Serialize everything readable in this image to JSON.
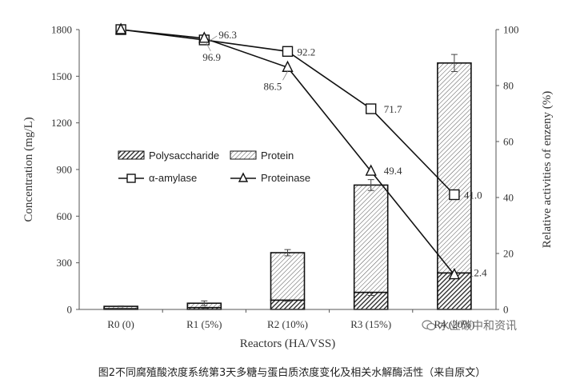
{
  "caption": "图2不同腐殖酸浓度系统第3天多糖与蛋白质浓度变化及相关水解酶活性（来自原文）",
  "watermark": "水业碳中和资讯",
  "watermark_icon": "wechat-icon",
  "chart_data": {
    "type": "bar",
    "stacked": true,
    "categories": [
      "R0 (0)",
      "R1 (5%)",
      "R2 (10%)",
      "R3 (15%)",
      "R4 (20%)"
    ],
    "xlabel": "Reactors (HA/VSS)",
    "ylabel": "Concentration (mg/L)",
    "ylim": [
      0,
      1800
    ],
    "yticks": [
      0,
      300,
      600,
      900,
      1200,
      1500,
      1800
    ],
    "y2label": "Relative activities of enzeny (%)",
    "y2lim": [
      0,
      100
    ],
    "y2ticks": [
      0,
      20,
      40,
      60,
      80,
      100
    ],
    "series": [
      {
        "name": "Polysaccharide",
        "kind": "bar",
        "axis": "left",
        "pattern": "dense-hatch",
        "values": [
          5,
          12,
          60,
          110,
          235
        ],
        "errors": [
          2,
          4,
          8,
          20,
          30
        ]
      },
      {
        "name": "Protein",
        "kind": "bar",
        "axis": "left",
        "pattern": "light-hatch",
        "values": [
          15,
          28,
          305,
          690,
          1350
        ],
        "errors": [
          3,
          15,
          20,
          35,
          55
        ]
      },
      {
        "name": "α-amylase",
        "kind": "line",
        "axis": "right",
        "marker": "square",
        "values": [
          100,
          96.3,
          92.2,
          71.7,
          41.0
        ],
        "labels": [
          "",
          "96.3",
          "92.2",
          "71.7",
          "41.0"
        ]
      },
      {
        "name": "Proteinase",
        "kind": "line",
        "axis": "right",
        "marker": "triangle",
        "values": [
          100,
          96.9,
          86.5,
          49.4,
          12.4
        ],
        "labels": [
          "",
          "96.9",
          "86.5",
          "49.4",
          "12.4"
        ]
      }
    ],
    "legend": {
      "placement": "upper-left"
    },
    "grid": false
  }
}
